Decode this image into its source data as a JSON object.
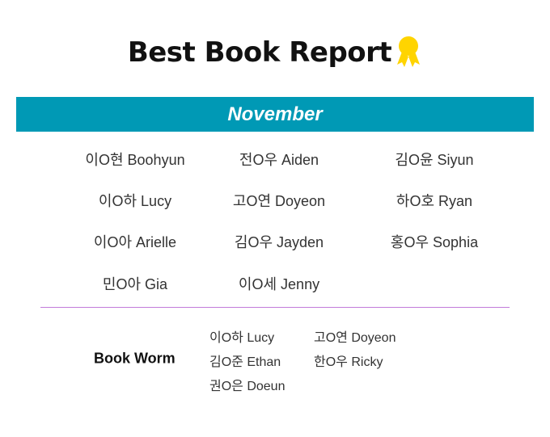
{
  "title": "Best Book Report",
  "title_icon": "award-ribbon-icon",
  "colors": {
    "banner": "#0099b5",
    "divider": "#c27bd9",
    "award": "#ffd400"
  },
  "month": "November",
  "winners": [
    "이O현 Boohyun",
    "전O우 Aiden",
    "김O윤 Siyun",
    "이O하 Lucy",
    "고O연 Doyeon",
    "하O호 Ryan",
    "이O아 Arielle",
    "김O우 Jayden",
    "홍O우 Sophia",
    "민O아 Gia",
    "이O세 Jenny"
  ],
  "book_worm": {
    "label": "Book Worm",
    "names": [
      "이O하 Lucy",
      "고O연 Doyeon",
      "김O준 Ethan",
      "한O우 Ricky",
      "권O은 Doeun"
    ]
  }
}
